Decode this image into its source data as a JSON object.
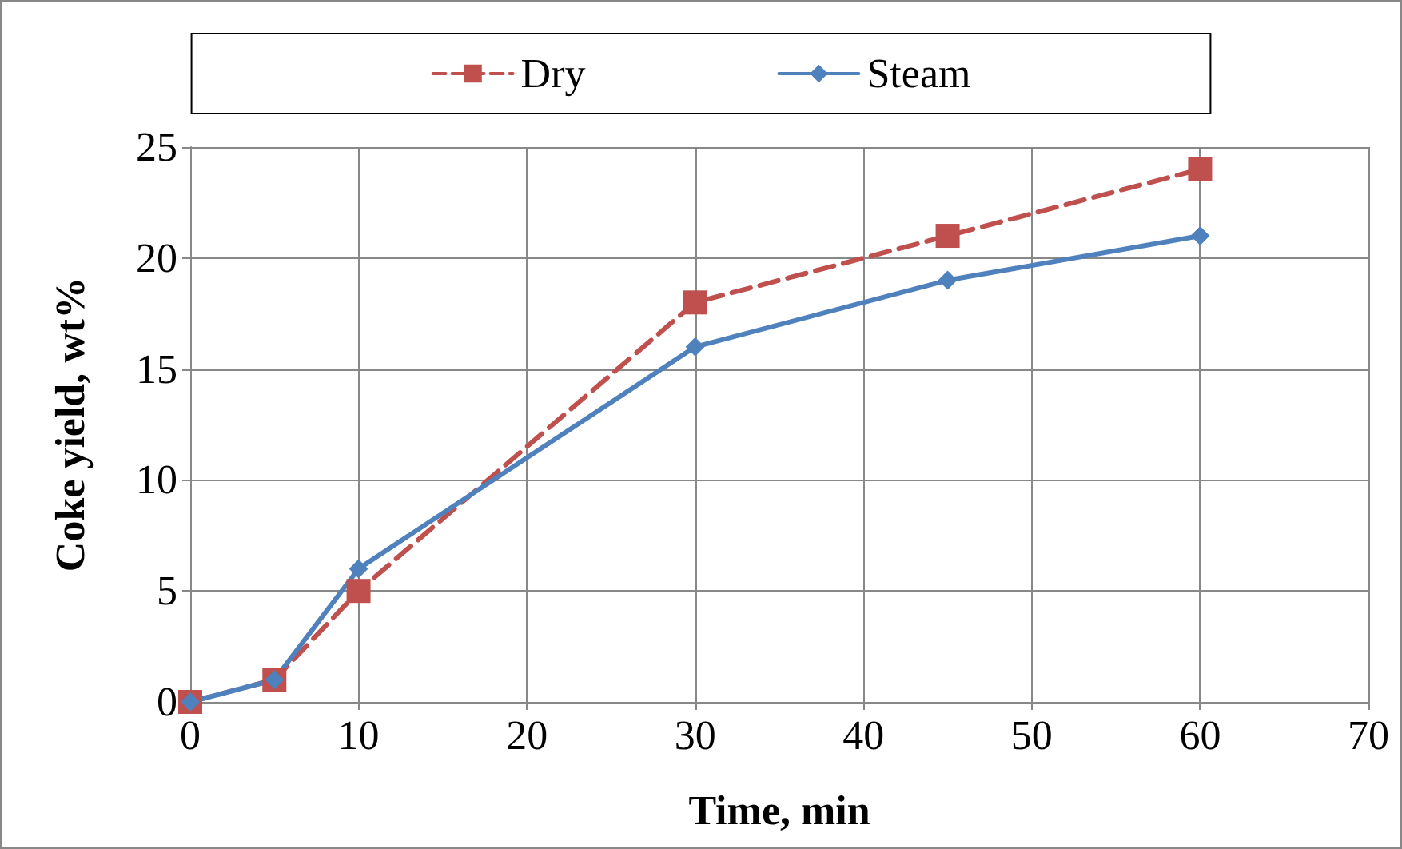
{
  "chart_data": {
    "type": "line",
    "xlabel": "Time, min",
    "ylabel": "Coke yield, wt%",
    "x": [
      0,
      5,
      10,
      30,
      45,
      60
    ],
    "series": [
      {
        "name": "Dry",
        "color": "#c0504d",
        "values": [
          0,
          1,
          5,
          18,
          21,
          24
        ],
        "marker": "square",
        "line_style": "dashed"
      },
      {
        "name": "Steam",
        "color": "#4f81bd",
        "values": [
          0,
          1,
          6,
          16,
          19,
          21
        ],
        "marker": "diamond",
        "line_style": "solid"
      }
    ],
    "xlim": [
      0,
      70
    ],
    "xticks": [
      0,
      10,
      20,
      30,
      40,
      50,
      60,
      70
    ],
    "ylim": [
      0,
      25
    ],
    "yticks": [
      0,
      5,
      10,
      15,
      20,
      25
    ],
    "grid": true,
    "legend": "top"
  }
}
